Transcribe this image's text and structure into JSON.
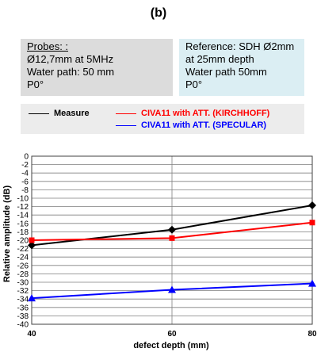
{
  "panel_label": "(b)",
  "probes": {
    "title": "Probes: :",
    "lines": [
      "Ø12,7mm at 5MHz",
      "Water path: 50 mm",
      "P0°"
    ]
  },
  "reference": {
    "lines": [
      "Reference:  SDH Ø2mm",
      "at 25mm depth",
      "Water path 50mm",
      "P0°"
    ]
  },
  "legend": {
    "measure": "Measure",
    "kirchhoff": "CIVA11 with ATT. (KIRCHHOFF)",
    "specular": "CIVA11 with ATT. (SPECULAR)"
  },
  "colors": {
    "measure": "#000000",
    "kirchhoff": "#ff0000",
    "specular": "#0000ff",
    "grid": "#7f7f7f"
  },
  "chart_data": {
    "type": "line",
    "xlabel": "defect depth (mm)",
    "ylabel": "Relative amplitude (dB)",
    "x": [
      40,
      60,
      80
    ],
    "xlim": [
      40,
      80
    ],
    "ylim": [
      -40,
      0
    ],
    "ytick_step": 2,
    "grid": true,
    "series": [
      {
        "name": "Measure",
        "values": [
          -21.2,
          -17.5,
          -11.7
        ],
        "marker": "diamond"
      },
      {
        "name": "CIVA11 with ATT. (KIRCHHOFF)",
        "values": [
          -20,
          -19.5,
          -15.8
        ],
        "marker": "square"
      },
      {
        "name": "CIVA11 with ATT. (SPECULAR)",
        "values": [
          -33.8,
          -31.8,
          -30.3
        ],
        "marker": "triangle"
      }
    ]
  }
}
